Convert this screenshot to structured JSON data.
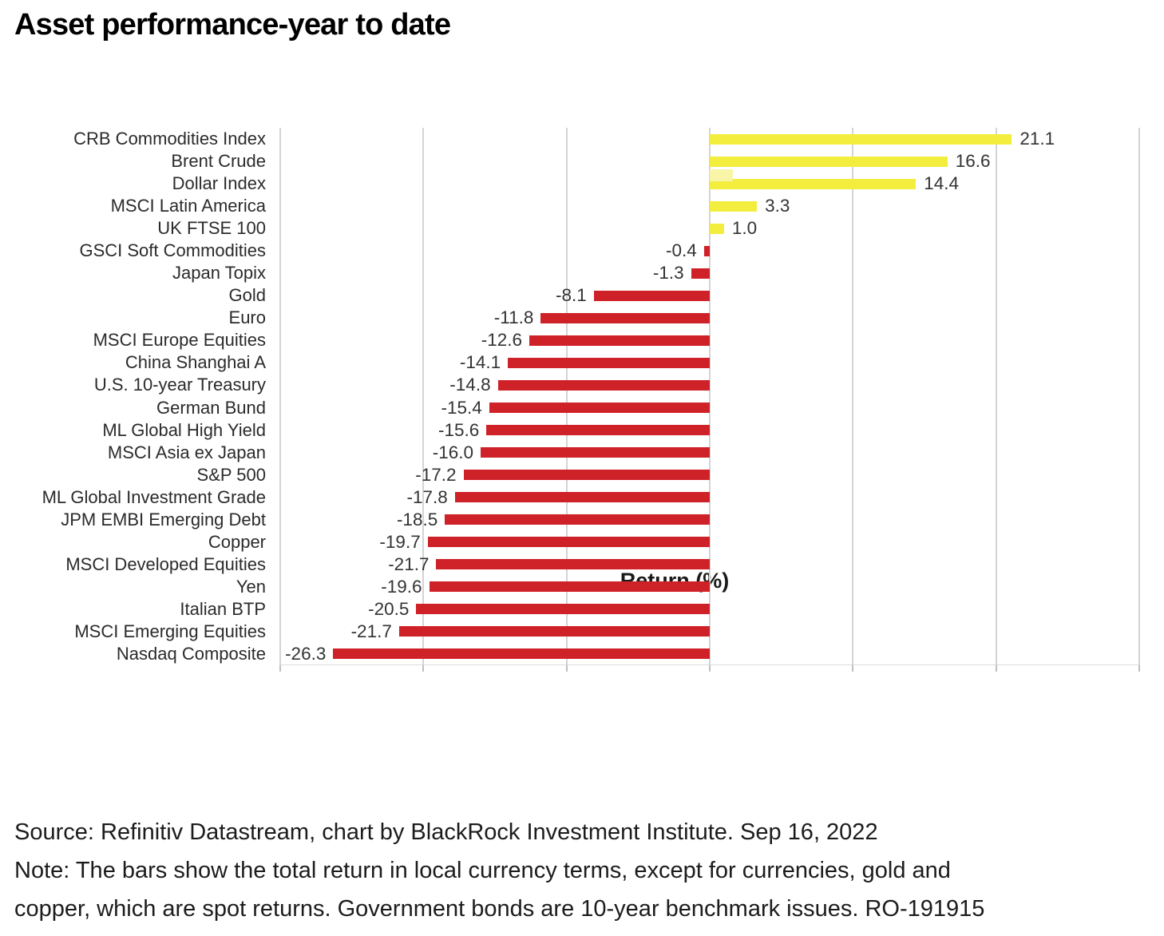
{
  "title": "Asset performance-year to date",
  "chart_data": {
    "type": "bar",
    "orientation": "horizontal",
    "title": "Asset performance-year to date",
    "xlabel": "Return (%)",
    "ylabel": "",
    "xlim": [
      -30,
      30
    ],
    "gridline_step": 10,
    "grid": true,
    "legend": "none",
    "positive_color": "#f3ee3d",
    "negative_color": "#cf2128",
    "categories": [
      "CRB Commodities Index",
      "Brent Crude",
      "Dollar Index",
      "MSCI Latin America",
      "UK FTSE 100",
      "GSCI Soft Commodities",
      "Japan Topix",
      "Gold",
      "Euro",
      "MSCI Europe Equities",
      "China Shanghai A",
      "U.S. 10-year Treasury",
      "German Bund",
      "ML Global High Yield",
      "MSCI Asia ex Japan",
      "S&P 500",
      "ML Global Investment Grade",
      "JPM EMBI Emerging Debt",
      "Copper",
      "MSCI Developed Equities",
      "Yen",
      "Italian BTP",
      "MSCI Emerging Equities",
      "Nasdaq Composite"
    ],
    "values": [
      21.1,
      16.6,
      14.4,
      3.3,
      1.0,
      -0.4,
      -1.3,
      -8.1,
      -11.8,
      -12.6,
      -14.1,
      -14.8,
      -15.4,
      -15.6,
      -16.0,
      -17.2,
      -17.8,
      -18.5,
      -19.7,
      -21.7,
      -19.6,
      -20.5,
      -21.7,
      -26.3
    ],
    "bar_length_overrides": {
      "19": -19.1
    },
    "artifact_bar": {
      "row_index": 2,
      "from": 0,
      "to": 1.6
    }
  },
  "footer": {
    "lines": [
      "Source: Refinitiv Datastream, chart by BlackRock Investment Institute. Sep 16, 2022",
      "Note: The bars show the total return in local currency terms, except for currencies, gold and",
      "copper, which are spot returns. Government bonds are 10-year benchmark issues. RO-191915"
    ]
  }
}
